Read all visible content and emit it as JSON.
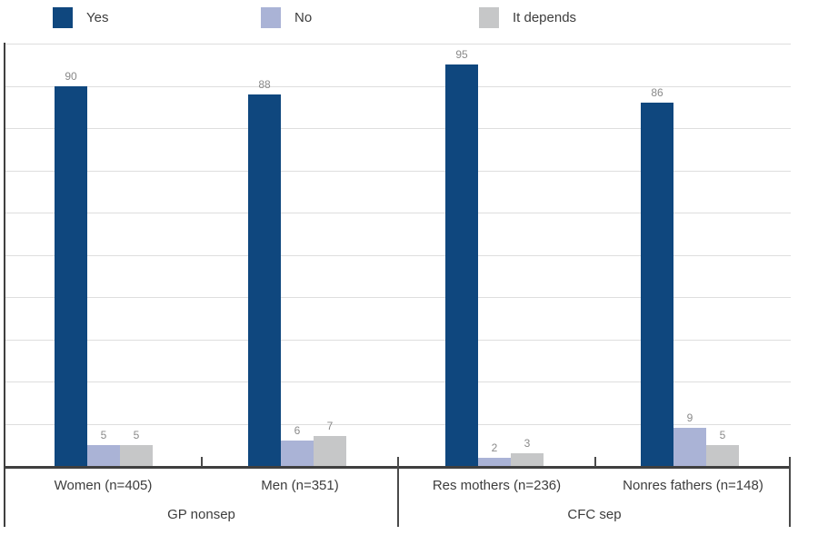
{
  "chart_data": {
    "type": "bar",
    "title": "",
    "legend_position": "top",
    "grid": true,
    "ylim": [
      0,
      100
    ],
    "gridline_step": 10,
    "series_names": [
      "Yes",
      "No",
      "It depends"
    ],
    "legend": [
      {
        "label": "Yes",
        "color": "#0f477e"
      },
      {
        "label": "No",
        "color": "#aab3d6"
      },
      {
        "label": "It depends",
        "color": "#c6c7c8"
      }
    ],
    "groups": [
      {
        "label": "GP nonsep",
        "categories": [
          {
            "label": "Women (n=405)",
            "values": [
              90,
              5,
              5
            ]
          },
          {
            "label": "Men (n=351)",
            "values": [
              88,
              6,
              7
            ]
          }
        ]
      },
      {
        "label": "CFC sep",
        "categories": [
          {
            "label": "Res mothers (n=236)",
            "values": [
              95,
              2,
              3
            ]
          },
          {
            "label": "Nonres fathers (n=148)",
            "values": [
              86,
              9,
              5
            ]
          }
        ]
      }
    ],
    "colors": {
      "axis": "#3f3f3f",
      "gridline": "#dedede",
      "value_label": "#8a8a8a",
      "text": "#3d3d3d"
    }
  }
}
